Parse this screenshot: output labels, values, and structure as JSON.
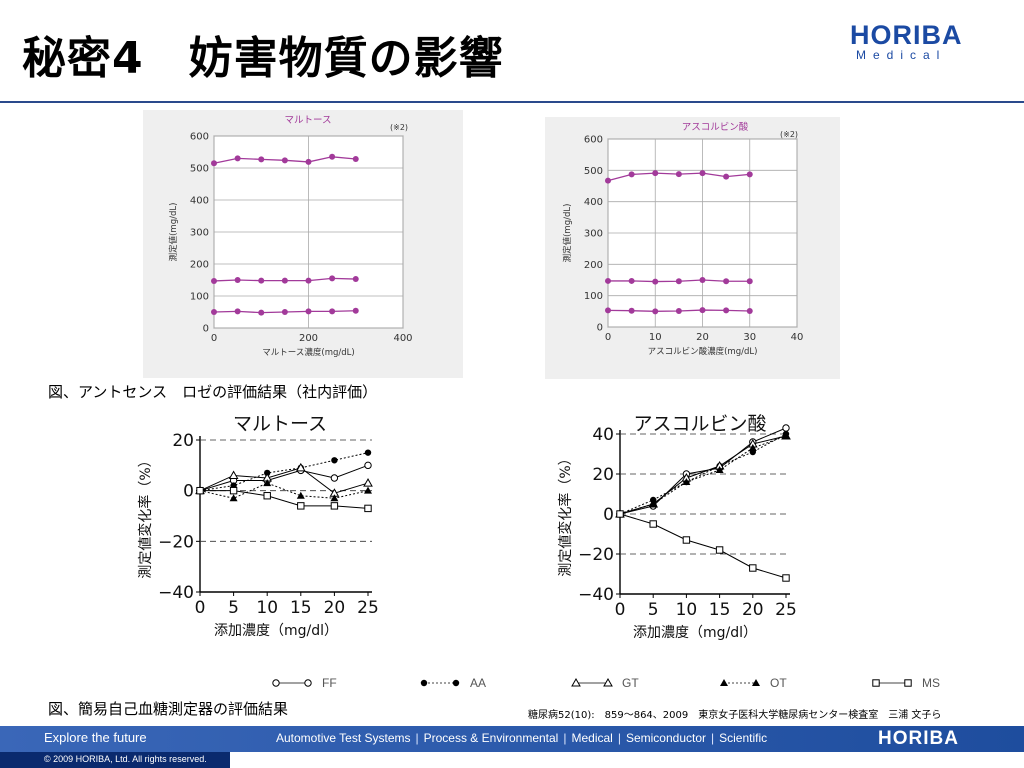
{
  "slide": {
    "title": "秘密4　妨害物質の影響"
  },
  "logo": {
    "word": "HORIBA",
    "sub": "Medical",
    "color": "#1b4aa3"
  },
  "captions": {
    "figure1": "図、アントセンス　ロゼの評価結果（社内評価）",
    "figure2": "図、簡易自己血糖測定器の評価結果",
    "citation": "糖尿病52(10):　859～864、2009　東京女子医科大学糖尿病センター検査室　三浦 文子ら"
  },
  "legend": [
    {
      "key": "FF",
      "label": "FF",
      "marker": "open-circle",
      "line": "solid"
    },
    {
      "key": "AA",
      "label": "AA",
      "marker": "filled-circle",
      "line": "dotted"
    },
    {
      "key": "GT",
      "label": "GT",
      "marker": "open-triangle",
      "line": "solid"
    },
    {
      "key": "OT",
      "label": "OT",
      "marker": "filled-triangle",
      "line": "dotted"
    },
    {
      "key": "MS",
      "label": "MS",
      "marker": "open-square",
      "line": "solid"
    }
  ],
  "footer": {
    "tagline": "Explore the future",
    "links": [
      "Automotive Test Systems",
      "Process & Environmental",
      "Medical",
      "Semiconductor",
      "Scientific"
    ],
    "logo": "HORIBA",
    "copyright": "© 2009 HORIBA, Ltd. All rights reserved.",
    "bar_color": "#2a5aaa"
  },
  "chart_data": [
    {
      "id": "maltose-rose",
      "type": "line",
      "title": "マルトース",
      "note": "(※2)",
      "xlabel": "マルトース濃度(mg/dL)",
      "ylabel": "測定値(mg/dL)",
      "xlim": [
        0,
        400
      ],
      "ylim": [
        0,
        600
      ],
      "xticks": [
        0,
        200,
        400
      ],
      "yticks": [
        0,
        100,
        200,
        300,
        400,
        500,
        600
      ],
      "grid": true,
      "color": "#a23a9a",
      "x": [
        0,
        50,
        100,
        150,
        200,
        250,
        300
      ],
      "series": [
        {
          "values": [
            515,
            530,
            527,
            524,
            519,
            535,
            528
          ]
        },
        {
          "values": [
            147,
            150,
            148,
            148,
            148,
            155,
            153
          ]
        },
        {
          "values": [
            50,
            52,
            48,
            50,
            52,
            52,
            54
          ]
        }
      ]
    },
    {
      "id": "ascorbic-rose",
      "type": "line",
      "title": "アスコルビン酸",
      "note": "(※2)",
      "xlabel": "アスコルビン酸濃度(mg/dL)",
      "ylabel": "測定値(mg/dL)",
      "xlim": [
        0,
        40
      ],
      "ylim": [
        0,
        600
      ],
      "xticks": [
        0,
        10,
        20,
        30,
        40
      ],
      "yticks": [
        0,
        100,
        200,
        300,
        400,
        500,
        600
      ],
      "grid": true,
      "color": "#a23a9a",
      "x": [
        0,
        5,
        10,
        15,
        20,
        25,
        30
      ],
      "series": [
        {
          "values": [
            467,
            487,
            491,
            488,
            491,
            480,
            487
          ]
        },
        {
          "values": [
            147,
            147,
            145,
            146,
            150,
            146,
            146
          ]
        },
        {
          "values": [
            53,
            52,
            50,
            51,
            54,
            53,
            51
          ]
        }
      ]
    },
    {
      "id": "maltose-meters",
      "type": "line",
      "title": "マルトース",
      "xlabel": "添加濃度（mg/dl）",
      "ylabel": "測定値変化率（%）",
      "xlim": [
        0,
        25
      ],
      "ylim": [
        -40,
        20
      ],
      "xticks": [
        0,
        5,
        10,
        15,
        20,
        25
      ],
      "yticks": [
        -40,
        -20,
        0,
        20
      ],
      "ytick_labels": [
        "−40",
        "−20",
        "0",
        "20"
      ],
      "grid": "dashed",
      "x": [
        0,
        5,
        10,
        15,
        20,
        25
      ],
      "series": [
        {
          "name": "FF",
          "values": [
            0,
            4,
            4,
            8,
            5,
            10
          ]
        },
        {
          "name": "AA",
          "values": [
            0,
            2,
            7,
            9,
            12,
            15
          ]
        },
        {
          "name": "GT",
          "values": [
            0,
            6,
            5,
            9,
            -1,
            3
          ]
        },
        {
          "name": "OT",
          "values": [
            0,
            -3,
            3,
            -2,
            -3,
            0
          ]
        },
        {
          "name": "MS",
          "values": [
            0,
            0,
            -2,
            -6,
            -6,
            -7
          ]
        }
      ]
    },
    {
      "id": "ascorbic-meters",
      "type": "line",
      "title": "アスコルビン酸",
      "xlabel": "添加濃度（mg/dl）",
      "ylabel": "測定値変化率（%）",
      "xlim": [
        0,
        25
      ],
      "ylim": [
        -40,
        40
      ],
      "xticks": [
        0,
        5,
        10,
        15,
        20,
        25
      ],
      "yticks": [
        -40,
        -20,
        0,
        20,
        40
      ],
      "ytick_labels": [
        "−40",
        "−20",
        "0",
        "20",
        "40"
      ],
      "grid": "dashed",
      "x": [
        0,
        5,
        10,
        15,
        20,
        25
      ],
      "series": [
        {
          "name": "FF",
          "values": [
            0,
            4,
            20,
            23,
            36,
            43
          ]
        },
        {
          "name": "AA",
          "values": [
            0,
            7,
            16,
            24,
            31,
            40
          ]
        },
        {
          "name": "GT",
          "values": [
            0,
            5,
            18,
            24,
            35,
            39
          ]
        },
        {
          "name": "OT",
          "values": [
            0,
            5,
            16,
            22,
            33,
            39
          ]
        },
        {
          "name": "MS",
          "values": [
            0,
            -5,
            -13,
            -18,
            -27,
            -32
          ]
        }
      ]
    }
  ]
}
